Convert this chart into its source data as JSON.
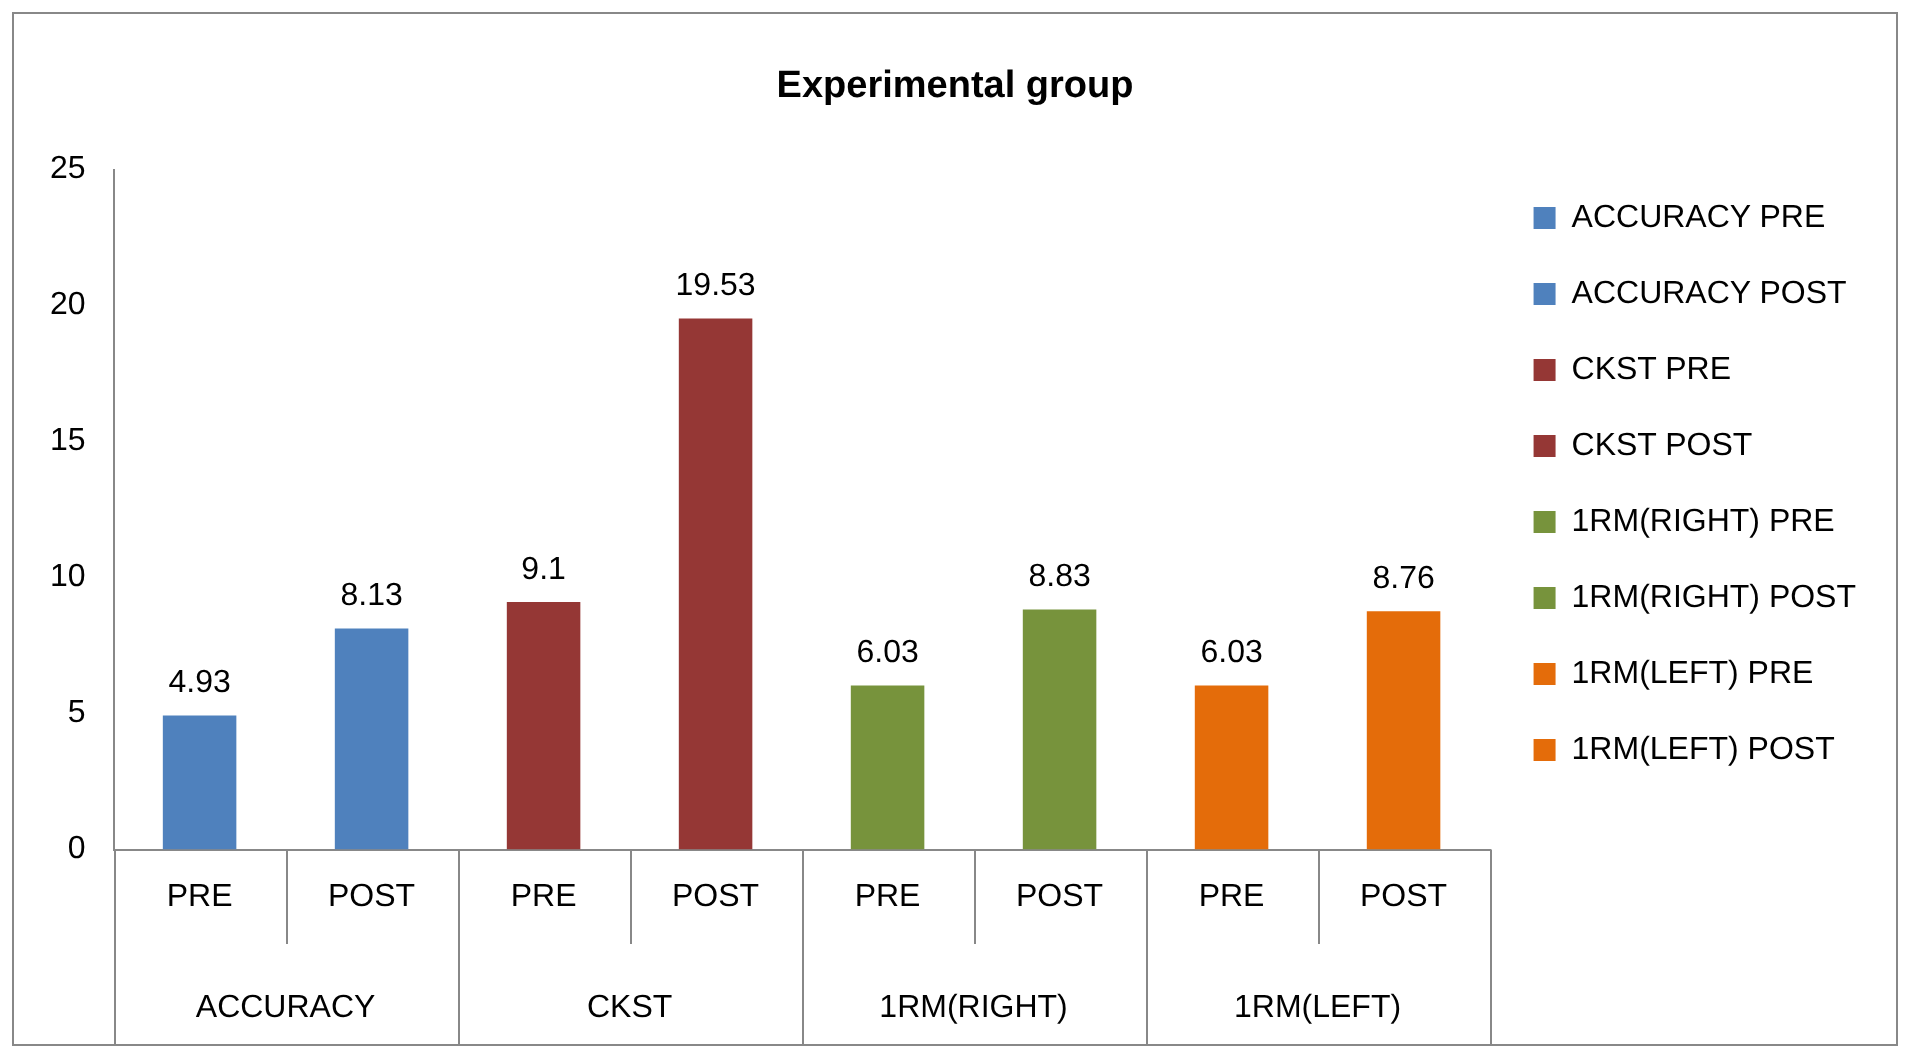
{
  "chart_data": {
    "type": "bar",
    "title": "Experimental group",
    "categories": [
      "PRE",
      "POST",
      "PRE",
      "POST",
      "PRE",
      "POST",
      "PRE",
      "POST"
    ],
    "annotations": [
      "ACCURACY",
      "CKST",
      "1RM(RIGHT)",
      "1RM(LEFT)"
    ],
    "series": [
      {
        "name": "ACCURACY PRE",
        "color": "#4f81bd",
        "values": [
          4.93,
          null,
          null,
          null,
          null,
          null,
          null,
          null
        ]
      },
      {
        "name": "ACCURACY POST",
        "color": "#4f81bd",
        "values": [
          null,
          8.13,
          null,
          null,
          null,
          null,
          null,
          null
        ]
      },
      {
        "name": "CKST PRE",
        "color": "#953735",
        "values": [
          null,
          null,
          9.1,
          null,
          null,
          null,
          null,
          null
        ]
      },
      {
        "name": "CKST POST",
        "color": "#953735",
        "values": [
          null,
          null,
          null,
          19.53,
          null,
          null,
          null,
          null
        ]
      },
      {
        "name": "1RM(RIGHT) PRE",
        "color": "#77933c",
        "values": [
          null,
          null,
          null,
          null,
          6.03,
          null,
          null,
          null
        ]
      },
      {
        "name": "1RM(RIGHT) POST",
        "color": "#77933c",
        "values": [
          null,
          null,
          null,
          null,
          null,
          8.83,
          null,
          null
        ]
      },
      {
        "name": "1RM(LEFT) PRE",
        "color": "#e46c0a",
        "values": [
          null,
          null,
          null,
          null,
          null,
          null,
          6.03,
          null
        ]
      },
      {
        "name": "1RM(LEFT) POST",
        "color": "#e46c0a",
        "values": [
          null,
          null,
          null,
          null,
          null,
          null,
          null,
          8.76
        ]
      }
    ],
    "ylim": [
      0,
      25
    ],
    "yticks": [
      0,
      5,
      10,
      15,
      20,
      25
    ],
    "grid": false,
    "legend": "right",
    "data_labels": true
  }
}
